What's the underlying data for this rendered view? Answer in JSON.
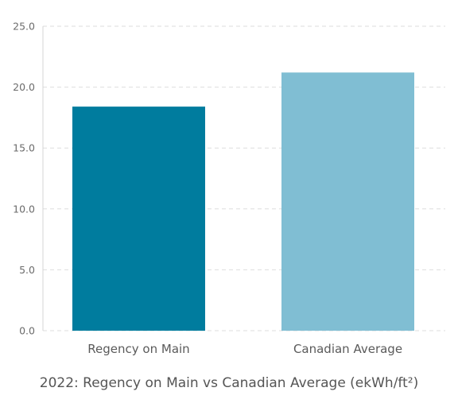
{
  "chart_data": {
    "type": "bar",
    "title": "2022: Regency on Main vs Canadian Average (ekWh/ft²)",
    "xlabel": "",
    "ylabel": "",
    "categories": [
      "Regency on Main",
      "Canadian Average"
    ],
    "values": [
      18.4,
      21.2
    ],
    "colors": [
      "#007C9E",
      "#80BED3"
    ],
    "ylim": [
      0,
      25
    ],
    "yticks": [
      "0.0",
      "5.0",
      "10.0",
      "15.0",
      "20.0",
      "25.0"
    ],
    "grid": true,
    "grid_style": "dashed",
    "legend": "none"
  }
}
